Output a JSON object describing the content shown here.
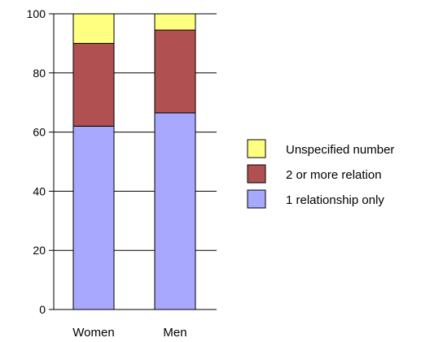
{
  "chart_data": {
    "type": "bar",
    "stacked": true,
    "categories": [
      "Women",
      "Men"
    ],
    "series": [
      {
        "name": "1 relationship only",
        "values": [
          62,
          66.5
        ],
        "color": "#a8a8ff"
      },
      {
        "name": "2 or more relation",
        "values": [
          28,
          28
        ],
        "color": "#b05050"
      },
      {
        "name": "Unspecified number",
        "values": [
          10,
          5.5
        ],
        "color": "#ffff80"
      }
    ],
    "title": "",
    "xlabel": "",
    "ylabel": "",
    "ylim": [
      0,
      100
    ],
    "yticks": [
      "0",
      "20",
      "40",
      "60",
      "80",
      "100"
    ],
    "grid": false,
    "legend_position": "right",
    "legend_order": [
      "Unspecified number",
      "2 or more relation",
      "1 relationship only"
    ]
  }
}
